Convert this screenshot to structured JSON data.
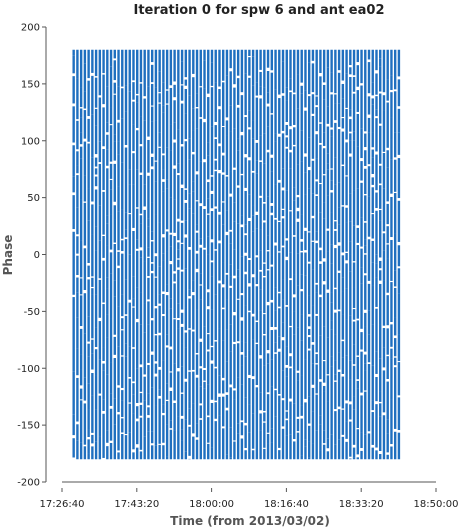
{
  "chart_data": {
    "type": "scatter",
    "title": "Iteration 0 for spw 6 and ant ea02",
    "xlabel": "Time (from 2013/03/02)",
    "ylabel": "Phase",
    "x_tick_labels": [
      "17:26:40",
      "17:43:20",
      "18:00:00",
      "18:16:40",
      "18:33:20",
      "18:50:00"
    ],
    "x_tick_minutes": [
      0,
      16.667,
      33.333,
      50,
      66.667,
      83.333
    ],
    "xlim_minutes": [
      0,
      83.333
    ],
    "ylim": [
      -200,
      200
    ],
    "y_ticks": [
      200,
      150,
      100,
      50,
      0,
      -50,
      -100,
      -150,
      -200
    ],
    "series": [
      {
        "name": "phase",
        "color": "#1f6fbf",
        "description_of_data": "Dense vertical columns of phase samples spanning -180 to 180 deg at each integration time",
        "time_start_minutes": 2.6,
        "time_end_minutes": 75.6,
        "integration_spacing_minutes": 0.833,
        "phase_range": [
          -180,
          180
        ]
      }
    ]
  }
}
